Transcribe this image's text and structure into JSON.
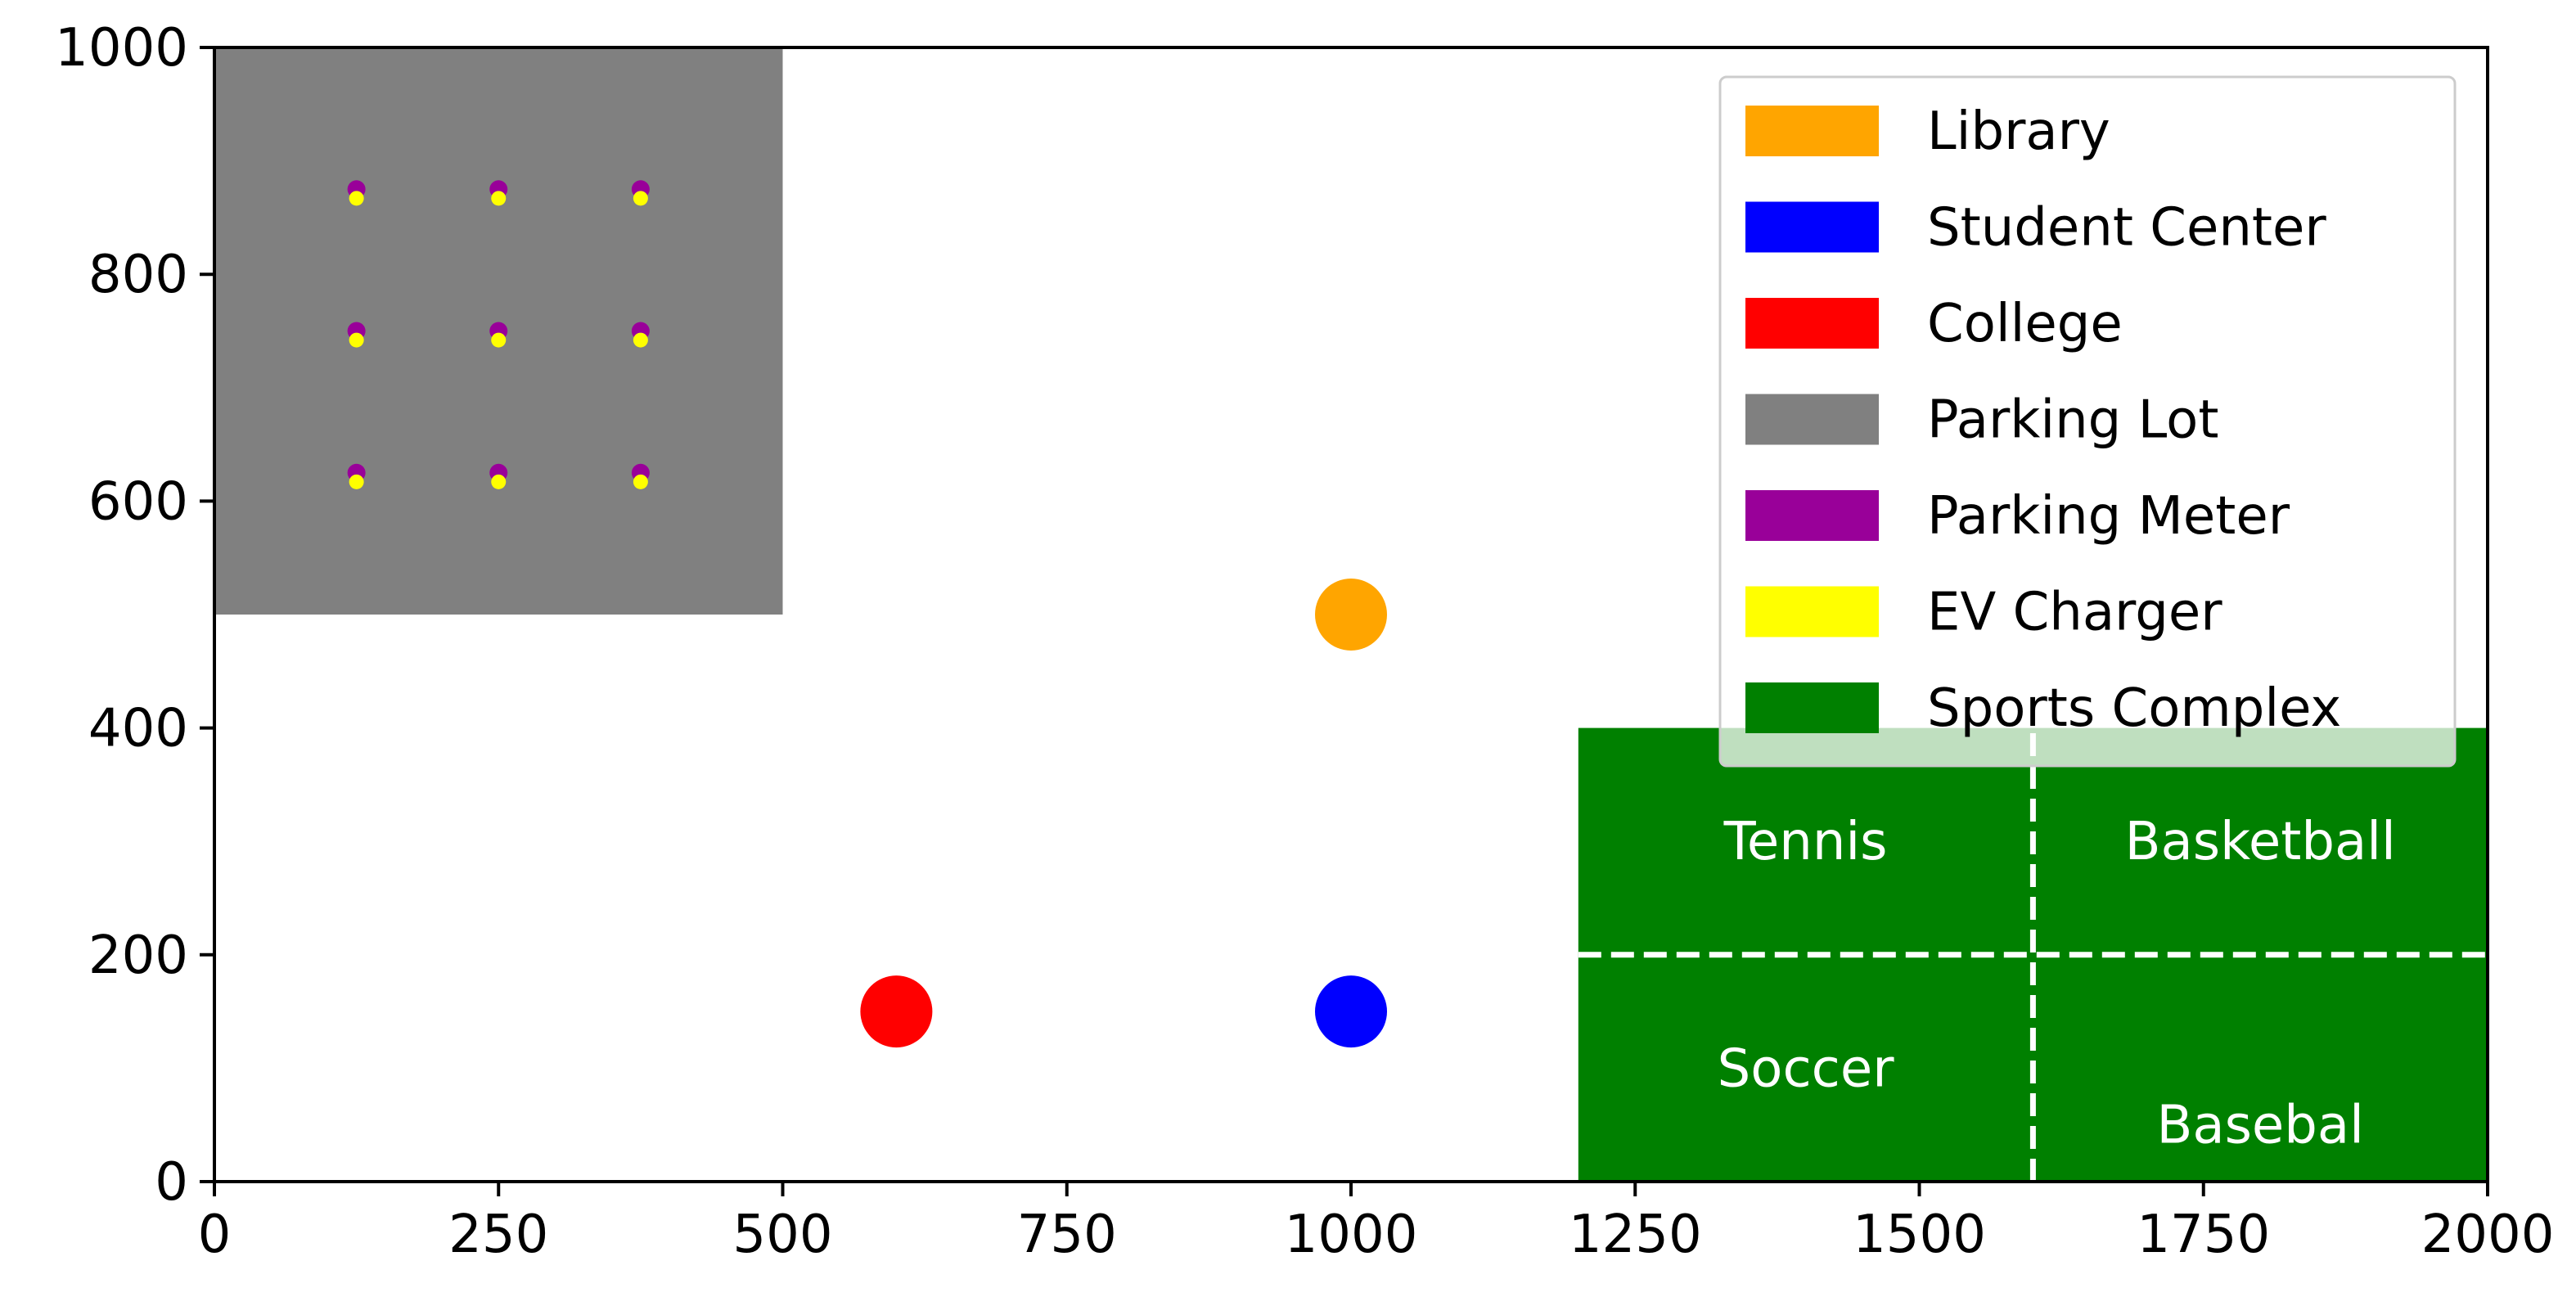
{
  "chart_data": {
    "type": "scatter",
    "title": "",
    "xlabel": "",
    "ylabel": "",
    "xlim": [
      0,
      2000
    ],
    "ylim": [
      0,
      1000
    ],
    "x_ticks": [
      "0",
      "250",
      "500",
      "750",
      "1000",
      "1250",
      "1500",
      "1750",
      "2000"
    ],
    "y_ticks": [
      "0",
      "200",
      "400",
      "600",
      "800",
      "1000"
    ],
    "grid": false,
    "legend_position": "top-right",
    "parking_lot": {
      "x_range": [
        0,
        500
      ],
      "y_range": [
        500,
        1000
      ],
      "color": "#808080"
    },
    "parking_meters": {
      "color": "#990099",
      "points": [
        {
          "x": 125,
          "y": 875
        },
        {
          "x": 250,
          "y": 875
        },
        {
          "x": 375,
          "y": 875
        },
        {
          "x": 125,
          "y": 750
        },
        {
          "x": 250,
          "y": 750
        },
        {
          "x": 375,
          "y": 750
        },
        {
          "x": 125,
          "y": 625
        },
        {
          "x": 250,
          "y": 625
        },
        {
          "x": 375,
          "y": 625
        }
      ]
    },
    "ev_chargers": {
      "color": "#ffff00",
      "points": [
        {
          "x": 125,
          "y": 867
        },
        {
          "x": 250,
          "y": 867
        },
        {
          "x": 375,
          "y": 867
        },
        {
          "x": 125,
          "y": 742
        },
        {
          "x": 250,
          "y": 742
        },
        {
          "x": 375,
          "y": 742
        },
        {
          "x": 125,
          "y": 617
        },
        {
          "x": 250,
          "y": 617
        },
        {
          "x": 375,
          "y": 617
        }
      ]
    },
    "buildings": [
      {
        "name": "Library",
        "x": 1000,
        "y": 500,
        "color": "#ffa500"
      },
      {
        "name": "Student Center",
        "x": 1000,
        "y": 150,
        "color": "#0000ff"
      },
      {
        "name": "College",
        "x": 600,
        "y": 150,
        "color": "#ff0000"
      }
    ],
    "sports_complex": {
      "x_range": [
        1200,
        2000
      ],
      "y_range": [
        0,
        400
      ],
      "color": "#008000",
      "divider_x": 1600,
      "divider_y": 200,
      "courts": [
        {
          "label": "Tennis",
          "x": 1400,
          "y": 300
        },
        {
          "label": "Basketball",
          "x": 1800,
          "y": 300
        },
        {
          "label": "Soccer",
          "x": 1400,
          "y": 100
        },
        {
          "label": "Basebal",
          "x": 1800,
          "y": 50
        }
      ]
    },
    "legend": [
      {
        "label": "Library",
        "color": "#ffa500"
      },
      {
        "label": "Student Center",
        "color": "#0000ff"
      },
      {
        "label": "College",
        "color": "#ff0000"
      },
      {
        "label": "Parking Lot",
        "color": "#808080"
      },
      {
        "label": "Parking Meter",
        "color": "#990099"
      },
      {
        "label": "EV Charger",
        "color": "#ffff00"
      },
      {
        "label": "Sports Complex",
        "color": "#008000"
      }
    ]
  }
}
